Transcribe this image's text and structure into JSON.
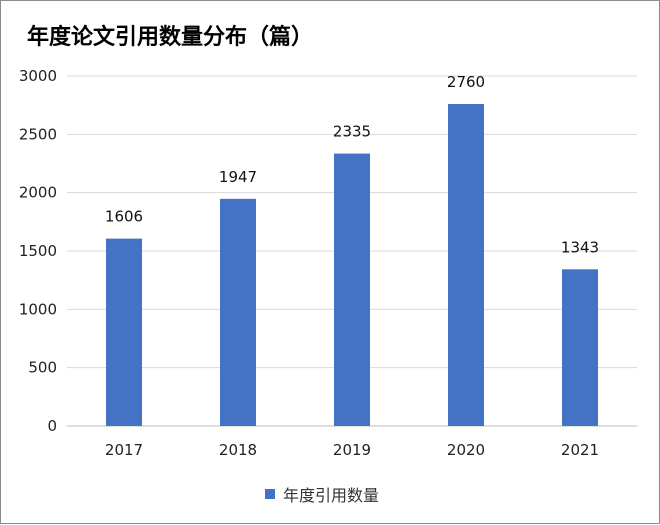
{
  "chart_data": {
    "type": "bar",
    "title": "年度论文引用数量分布（篇）",
    "categories": [
      "2017",
      "2018",
      "2019",
      "2020",
      "2021"
    ],
    "series": [
      {
        "name": "年度引用数量",
        "values": [
          1606,
          1947,
          2335,
          2760,
          1343
        ]
      }
    ],
    "ylim": [
      0,
      3000
    ],
    "yticks": [
      0,
      500,
      1000,
      1500,
      2000,
      2500,
      3000
    ],
    "xlabel": "",
    "ylabel": "",
    "grid": true,
    "legend": "bottom",
    "bar_color": "#4472c4",
    "grid_color": "#d9d9d9"
  }
}
